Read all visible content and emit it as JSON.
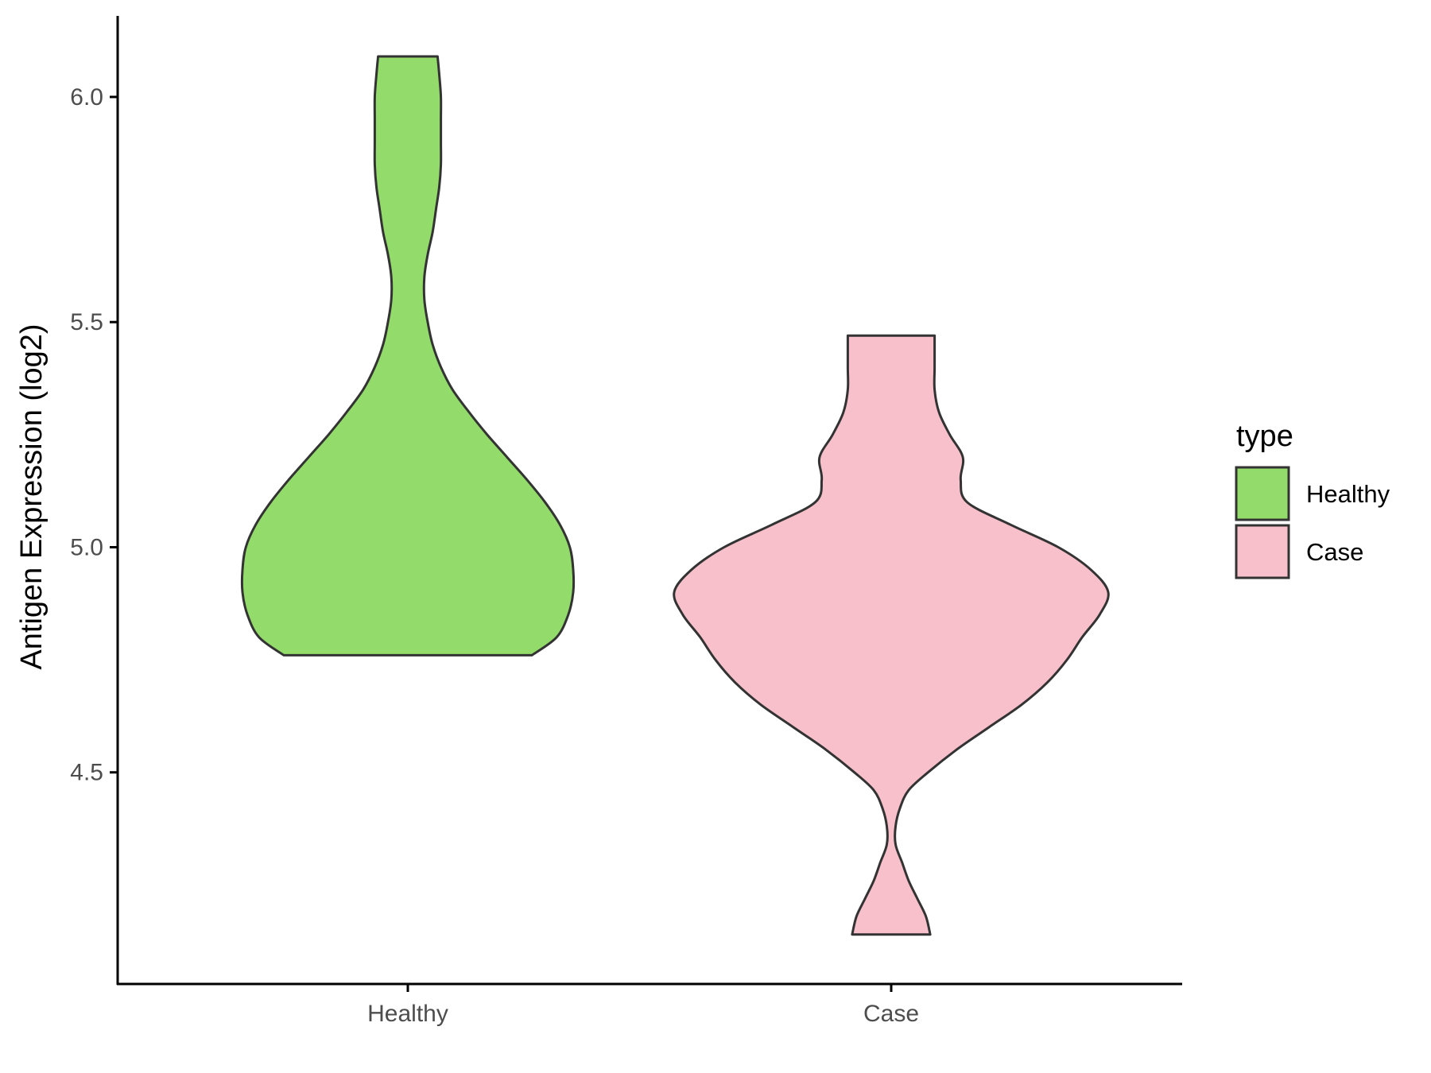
{
  "chart_data": {
    "type": "violin",
    "title": "",
    "xlabel": "",
    "ylabel": "Antigen Expression (log2)",
    "ylim": [
      4.03,
      6.18
    ],
    "yticks": [
      "4.5",
      "5.0",
      "5.5",
      "6.0"
    ],
    "categories": [
      "Healthy",
      "Case"
    ],
    "grid": false,
    "legend": {
      "title": "type",
      "position": "right",
      "entries": [
        "Healthy",
        "Case"
      ]
    },
    "series": [
      {
        "name": "Healthy",
        "color": "#93DB6A",
        "min": 4.76,
        "max": 6.09,
        "density_profile": [
          [
            4.76,
            0.75
          ],
          [
            4.8,
            0.9
          ],
          [
            4.85,
            0.97
          ],
          [
            4.9,
            1.0
          ],
          [
            4.95,
            1.0
          ],
          [
            5.0,
            0.98
          ],
          [
            5.05,
            0.92
          ],
          [
            5.1,
            0.83
          ],
          [
            5.15,
            0.72
          ],
          [
            5.2,
            0.6
          ],
          [
            5.25,
            0.48
          ],
          [
            5.3,
            0.37
          ],
          [
            5.35,
            0.27
          ],
          [
            5.4,
            0.2
          ],
          [
            5.45,
            0.15
          ],
          [
            5.5,
            0.12
          ],
          [
            5.55,
            0.1
          ],
          [
            5.6,
            0.1
          ],
          [
            5.65,
            0.12
          ],
          [
            5.7,
            0.15
          ],
          [
            5.75,
            0.17
          ],
          [
            5.8,
            0.19
          ],
          [
            5.85,
            0.2
          ],
          [
            5.9,
            0.2
          ],
          [
            5.95,
            0.2
          ],
          [
            6.0,
            0.2
          ],
          [
            6.05,
            0.19
          ],
          [
            6.09,
            0.18
          ]
        ]
      },
      {
        "name": "Case",
        "color": "#F7C0CB",
        "min": 4.14,
        "max": 5.47,
        "density_profile": [
          [
            4.14,
            0.18
          ],
          [
            4.18,
            0.16
          ],
          [
            4.22,
            0.12
          ],
          [
            4.26,
            0.08
          ],
          [
            4.3,
            0.05
          ],
          [
            4.34,
            0.02
          ],
          [
            4.38,
            0.02
          ],
          [
            4.42,
            0.04
          ],
          [
            4.46,
            0.08
          ],
          [
            4.5,
            0.17
          ],
          [
            4.55,
            0.3
          ],
          [
            4.6,
            0.45
          ],
          [
            4.65,
            0.6
          ],
          [
            4.7,
            0.72
          ],
          [
            4.75,
            0.81
          ],
          [
            4.8,
            0.88
          ],
          [
            4.85,
            0.96
          ],
          [
            4.9,
            1.0
          ],
          [
            4.95,
            0.92
          ],
          [
            5.0,
            0.77
          ],
          [
            5.05,
            0.55
          ],
          [
            5.1,
            0.35
          ],
          [
            5.15,
            0.32
          ],
          [
            5.2,
            0.33
          ],
          [
            5.25,
            0.27
          ],
          [
            5.3,
            0.22
          ],
          [
            5.35,
            0.2
          ],
          [
            5.4,
            0.2
          ],
          [
            5.47,
            0.2
          ]
        ]
      }
    ]
  }
}
